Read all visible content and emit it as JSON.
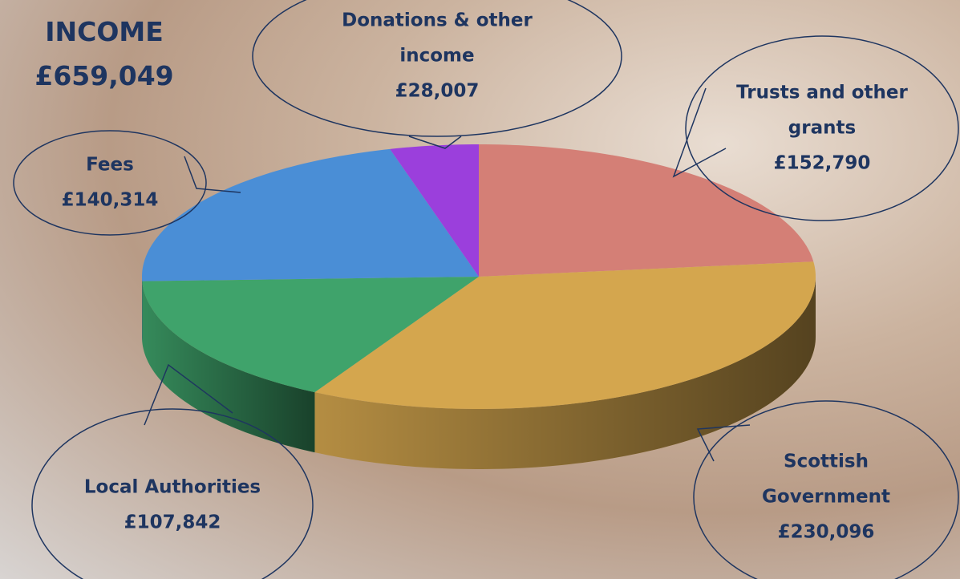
{
  "chart_data": {
    "type": "pie",
    "title": "INCOME",
    "subtitle": "£659,049",
    "categories": [
      "Trusts and other grants",
      "Scottish Government",
      "Local Authorities",
      "Fees",
      "Donations & other income"
    ],
    "values": [
      152790,
      230096,
      107842,
      140314,
      28007
    ],
    "value_labels": [
      "£152,790",
      "£230,096",
      "£107,842",
      "£140,314",
      "£28,007"
    ],
    "colors": [
      "#d47f76",
      "#d4a64e",
      "#3fa36b",
      "#4a8ed6",
      "#9b3fdc"
    ]
  }
}
